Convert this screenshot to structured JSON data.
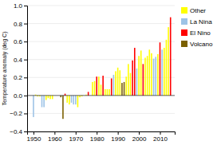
{
  "chart_data": {
    "type": "bar",
    "ylabel": "Temperature anomaly (deg C)",
    "x": [
      1950,
      1951,
      1952,
      1953,
      1954,
      1955,
      1956,
      1957,
      1958,
      1959,
      1963,
      1964,
      1965,
      1966,
      1967,
      1968,
      1969,
      1970,
      1971,
      1972,
      1973,
      1975,
      1976,
      1978,
      1979,
      1980,
      1981,
      1982,
      1983,
      1984,
      1985,
      1986,
      1987,
      1988,
      1989,
      1990,
      1991,
      1992,
      1993,
      1994,
      1995,
      1996,
      1997,
      1998,
      1999,
      2000,
      2001,
      2002,
      2003,
      2004,
      2005,
      2006,
      2007,
      2008,
      2009,
      2010,
      2011,
      2012,
      2013,
      2014,
      2015
    ],
    "series": [
      {
        "name": "Other",
        "color": "#ffff00",
        "values": [
          null,
          0.01,
          -0.01,
          -0.01,
          null,
          null,
          -0.05,
          -0.03,
          -0.04,
          -0.04,
          null,
          null,
          null,
          -0.08,
          -0.1,
          null,
          null,
          null,
          -0.13,
          -0.02,
          -0.01,
          0.01,
          null,
          0.15,
          0.16,
          null,
          0.21,
          0.12,
          null,
          0.07,
          0.07,
          0.07,
          null,
          null,
          0.27,
          0.31,
          0.28,
          null,
          null,
          0.21,
          0.35,
          0.25,
          null,
          null,
          null,
          0.44,
          0.5,
          null,
          0.42,
          0.44,
          0.51,
          0.47,
          null,
          null,
          0.46,
          null,
          null,
          0.53,
          0.62,
          0.76,
          null
        ]
      },
      {
        "name": "La Nina",
        "color": "#9dc3e6",
        "values": [
          -0.24,
          null,
          null,
          null,
          -0.13,
          -0.13,
          null,
          null,
          null,
          null,
          null,
          null,
          null,
          null,
          null,
          -0.08,
          -0.1,
          -0.1,
          null,
          null,
          null,
          null,
          null,
          null,
          null,
          null,
          null,
          null,
          null,
          null,
          null,
          null,
          null,
          0.23,
          null,
          null,
          null,
          null,
          null,
          null,
          null,
          null,
          null,
          null,
          0.3,
          null,
          null,
          null,
          null,
          null,
          null,
          null,
          0.41,
          0.43,
          null,
          null,
          0.51,
          null,
          null,
          null,
          null
        ]
      },
      {
        "name": "El Nino",
        "color": "#ff0000",
        "values": [
          null,
          null,
          null,
          null,
          null,
          null,
          null,
          null,
          null,
          null,
          null,
          null,
          0.02,
          null,
          null,
          null,
          null,
          null,
          null,
          null,
          null,
          null,
          0.04,
          null,
          null,
          0.21,
          null,
          null,
          0.22,
          null,
          null,
          null,
          0.19,
          null,
          null,
          null,
          null,
          null,
          null,
          null,
          null,
          null,
          0.39,
          0.53,
          null,
          null,
          null,
          0.35,
          null,
          null,
          null,
          null,
          null,
          null,
          null,
          0.59,
          null,
          null,
          null,
          null,
          0.87
        ]
      },
      {
        "name": "Volcano",
        "color": "#7b6000",
        "values": [
          null,
          null,
          null,
          null,
          null,
          null,
          null,
          null,
          null,
          null,
          -0.02,
          -0.26,
          null,
          null,
          null,
          null,
          null,
          null,
          null,
          null,
          null,
          null,
          null,
          null,
          null,
          null,
          null,
          null,
          null,
          null,
          null,
          null,
          null,
          null,
          null,
          null,
          null,
          0.14,
          0.15,
          null,
          null,
          null,
          null,
          null,
          null,
          null,
          null,
          null,
          null,
          null,
          null,
          null,
          null,
          null,
          null,
          null,
          null,
          null,
          null,
          null,
          null
        ]
      }
    ],
    "xlim": [
      1947,
      2017
    ],
    "xticks": [
      1950,
      1960,
      1970,
      1980,
      1990,
      2000,
      2010
    ],
    "ylim": [
      -0.4,
      1.0
    ],
    "yticks": [
      {
        "value": -0.4,
        "label": "−0.4"
      },
      {
        "value": -0.2,
        "label": "−0.2"
      },
      {
        "value": 0.0,
        "label": "0.0"
      },
      0.2,
      0.4,
      0.6,
      0.8,
      {
        "value": 1.0,
        "label": "1.0"
      }
    ],
    "grid": true,
    "legend": "right"
  }
}
